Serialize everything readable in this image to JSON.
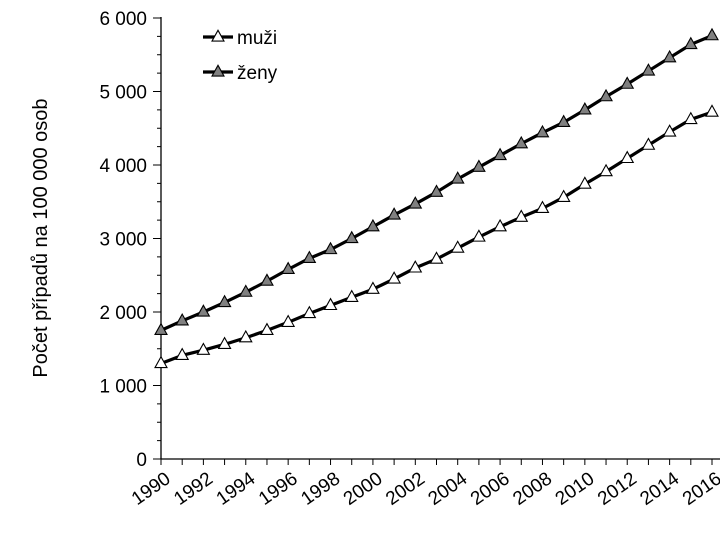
{
  "chart_data": {
    "type": "line",
    "ylabel": "Počet případů na 100 000 osob",
    "xlabel": "",
    "ylim": [
      0,
      6000
    ],
    "yticks": [
      0,
      1000,
      2000,
      3000,
      4000,
      5000,
      6000
    ],
    "ytick_labels": [
      "0",
      "1 000",
      "2 000",
      "3 000",
      "4 000",
      "5 000",
      "6 000"
    ],
    "x": [
      1990,
      1991,
      1992,
      1993,
      1994,
      1995,
      1996,
      1997,
      1998,
      1999,
      2000,
      2001,
      2002,
      2003,
      2004,
      2005,
      2006,
      2007,
      2008,
      2009,
      2010,
      2011,
      2012,
      2013,
      2014,
      2015,
      2016
    ],
    "xticks": [
      1990,
      1992,
      1994,
      1996,
      1998,
      2000,
      2002,
      2004,
      2006,
      2008,
      2010,
      2012,
      2014,
      2016
    ],
    "xtick_labels": [
      "1990",
      "1992",
      "1994",
      "1996",
      "1998",
      "2000",
      "2002",
      "2004",
      "2006",
      "2008",
      "2010",
      "2012",
      "2014",
      "2016"
    ],
    "grid": false,
    "legend": "top-left",
    "series": [
      {
        "name": "muži",
        "marker": "open-triangle",
        "color": "#000000",
        "values": [
          1300,
          1410,
          1480,
          1560,
          1650,
          1750,
          1860,
          1980,
          2090,
          2200,
          2310,
          2450,
          2600,
          2720,
          2870,
          3020,
          3160,
          3290,
          3410,
          3560,
          3740,
          3910,
          4090,
          4270,
          4450,
          4620,
          4720
        ]
      },
      {
        "name": "ženy",
        "marker": "filled-triangle",
        "color": "#808080",
        "values": [
          1750,
          1880,
          2000,
          2130,
          2270,
          2420,
          2580,
          2730,
          2850,
          3000,
          3160,
          3320,
          3470,
          3630,
          3810,
          3970,
          4130,
          4290,
          4440,
          4580,
          4750,
          4930,
          5100,
          5280,
          5460,
          5640,
          5760
        ]
      }
    ]
  }
}
